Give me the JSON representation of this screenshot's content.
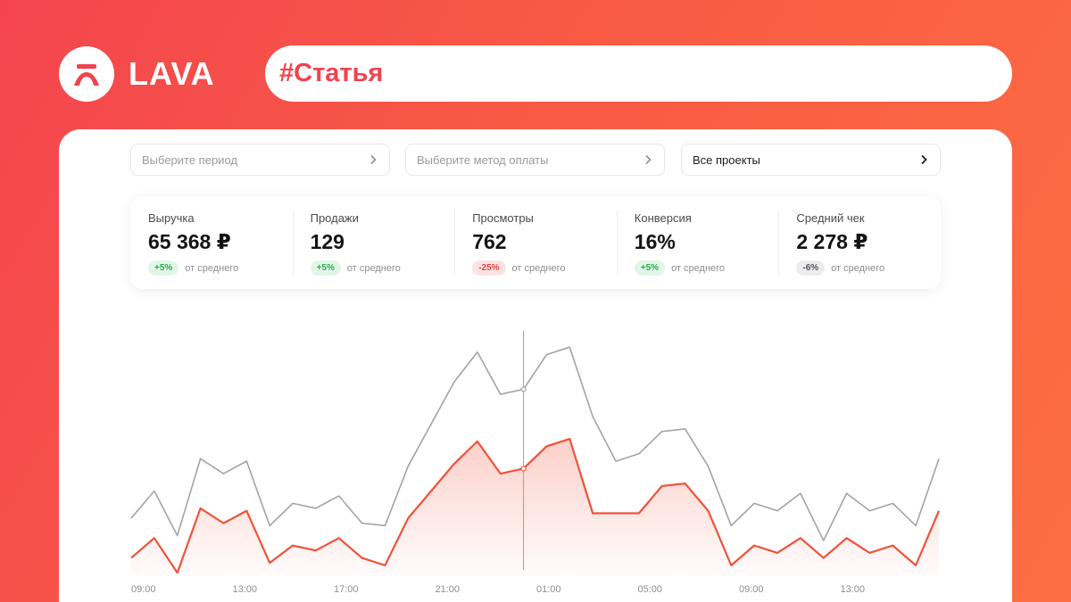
{
  "brand": {
    "name": "LAVA",
    "icon": "lava-logo-icon"
  },
  "tag": "#Статья",
  "filters": [
    {
      "label": "Выберите период",
      "icon": "chevron-right-icon"
    },
    {
      "label": "Выберите метод оплаты",
      "icon": "chevron-right-icon"
    },
    {
      "label": "Все проекты",
      "icon": "chevron-right-icon"
    }
  ],
  "stats": [
    {
      "label": "Выручка",
      "value": "65 368 ₽",
      "change": "+5%",
      "note": "от среднего",
      "trend": "positive"
    },
    {
      "label": "Продажи",
      "value": "129",
      "change": "+5%",
      "note": "от среднего",
      "trend": "positive"
    },
    {
      "label": "Просмотры",
      "value": "762",
      "change": "-25%",
      "note": "от среднего",
      "trend": "negative"
    },
    {
      "label": "Конверсия",
      "value": "16%",
      "change": "+5%",
      "note": "от среднего",
      "trend": "positive"
    },
    {
      "label": "Средний чек",
      "value": "2 278 ₽",
      "change": "-6%",
      "note": "от среднего",
      "trend": "neutral"
    }
  ],
  "chart_data": {
    "type": "line",
    "x_tick_labels": [
      "09:00",
      "13:00",
      "17:00",
      "21:00",
      "01:00",
      "05:00",
      "09:00",
      "13:00"
    ],
    "series": [
      {
        "color": "#a3a3a8",
        "values": [
          23,
          34,
          16,
          47,
          41,
          46,
          20,
          29,
          27,
          32,
          21,
          20,
          44,
          61,
          78,
          90,
          73,
          75,
          89,
          92,
          64,
          46,
          49,
          58,
          59,
          44,
          20,
          29,
          26,
          33,
          14,
          33,
          26,
          29,
          20,
          47
        ]
      },
      {
        "color": "#f2513a",
        "values": [
          7,
          15,
          1,
          27,
          21,
          26,
          5,
          12,
          10,
          15,
          7,
          4,
          23,
          34,
          45,
          54,
          41,
          43,
          52,
          55,
          25,
          25,
          25,
          36,
          37,
          26,
          4,
          12,
          9,
          15,
          7,
          15,
          9,
          12,
          4,
          26
        ]
      }
    ],
    "area_fill_series": 1,
    "cursor_index": 17,
    "grid": false,
    "legend": "none"
  }
}
